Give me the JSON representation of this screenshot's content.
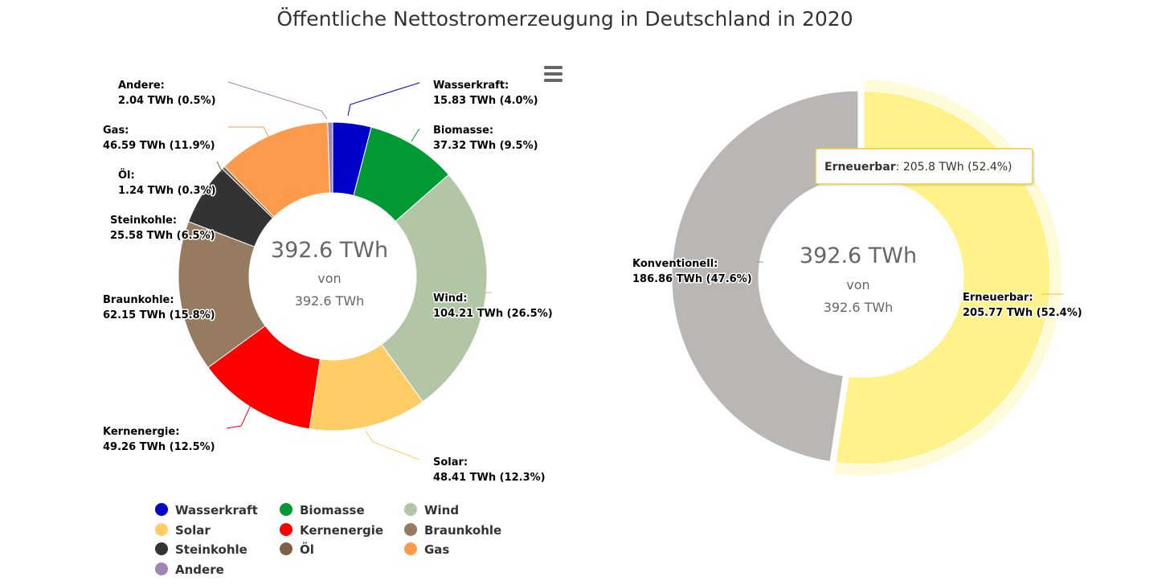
{
  "colors": {
    "menu_icon": "#666666",
    "tooltip_border": "#e6c84a",
    "center_text": "#666666"
  },
  "menu": {
    "icon": "hamburger-menu-icon"
  },
  "chart_data": [
    {
      "type": "pie",
      "variant": "donut",
      "title": "Öffentliche Nettostromerzeugung in Deutschland in 2020",
      "unit": "TWh",
      "center_value": "392.6 TWh",
      "center_from": "von",
      "center_total": "392.6 TWh",
      "series": [
        {
          "name": "Wasserkraft",
          "value": 15.83,
          "percent": "4.0%",
          "label_value": "15.83 TWh (4.0%)",
          "color": "#0000c8"
        },
        {
          "name": "Biomasse",
          "value": 37.32,
          "percent": "9.5%",
          "label_value": "37.32 TWh (9.5%)",
          "color": "#009933"
        },
        {
          "name": "Wind",
          "value": 104.21,
          "percent": "26.5%",
          "label_value": "104.21 TWh (26.5%)",
          "color": "#b2c6a6"
        },
        {
          "name": "Solar",
          "value": 48.41,
          "percent": "12.3%",
          "label_value": "48.41 TWh (12.3%)",
          "color": "#ffcc66"
        },
        {
          "name": "Kernenergie",
          "value": 49.26,
          "percent": "12.5%",
          "label_value": "49.26 TWh (12.5%)",
          "color": "#ff0000"
        },
        {
          "name": "Braunkohle",
          "value": 62.15,
          "percent": "15.8%",
          "label_value": "62.15 TWh (15.8%)",
          "color": "#967b60"
        },
        {
          "name": "Steinkohle",
          "value": 25.58,
          "percent": "6.5%",
          "label_value": "25.58 TWh (6.5%)",
          "color": "#333333"
        },
        {
          "name": "Öl",
          "value": 1.24,
          "percent": "0.3%",
          "label_value": "1.24 TWh (0.3%)",
          "color": "#7f5f46"
        },
        {
          "name": "Gas",
          "value": 46.59,
          "percent": "11.9%",
          "label_value": "46.59 TWh (11.9%)",
          "color": "#fd9a4b"
        },
        {
          "name": "Andere",
          "value": 2.04,
          "percent": "0.5%",
          "label_value": "2.04 TWh (0.5%)",
          "color": "#9e85b8"
        }
      ],
      "legend": [
        "Wasserkraft",
        "Biomasse",
        "Wind",
        "Solar",
        "Kernenergie",
        "Braunkohle",
        "Steinkohle",
        "Öl",
        "Gas",
        "Andere"
      ]
    },
    {
      "type": "pie",
      "variant": "donut",
      "unit": "TWh",
      "center_value": "392.6 TWh",
      "center_from": "von",
      "center_total": "392.6 TWh",
      "series": [
        {
          "name": "Erneuerbar",
          "value": 205.77,
          "percent": "52.4%",
          "label_value": "205.77 TWh (52.4%)",
          "color": "#fff28b",
          "hovered": true
        },
        {
          "name": "Konventionell",
          "value": 186.86,
          "percent": "47.6%",
          "label_value": "186.86 TWh (47.6%)",
          "color": "#bab6b3"
        }
      ],
      "tooltip": {
        "name": "Erneuerbar",
        "value": "205.8 TWh (52.4%)"
      }
    }
  ]
}
